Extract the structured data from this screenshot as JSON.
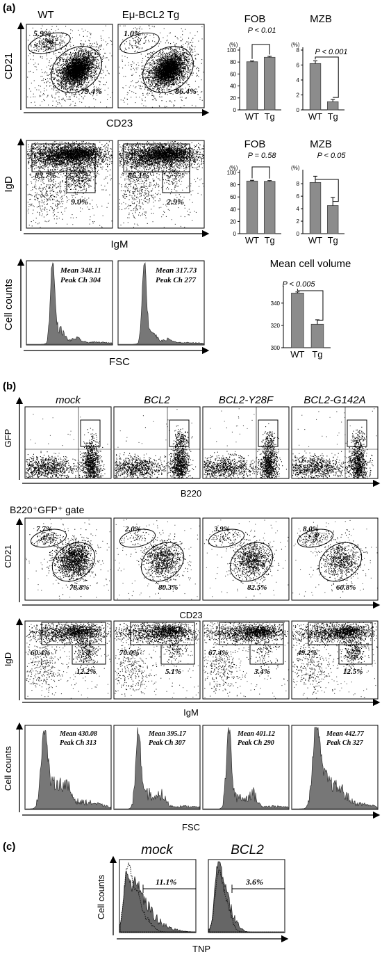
{
  "panel_a": {
    "label": "(a)",
    "col_wt": "WT",
    "col_tg": "Eμ-BCL2 Tg",
    "row1": {
      "ylabel": "CD21",
      "xlabel": "CD23",
      "wt_small": "5.9%",
      "wt_large": "79.4%",
      "tg_small": "1.0%",
      "tg_large": "86.4%"
    },
    "row2": {
      "ylabel": "IgD",
      "xlabel": "IgM",
      "wt_big": "83.7%",
      "wt_small": "9.0%",
      "tg_big": "86.1%",
      "tg_small": "2.9%"
    },
    "row3": {
      "ylabel": "Cell counts",
      "xlabel": "FSC",
      "wt_l1": "Mean  348.11",
      "wt_l2": "Peak Ch  304",
      "tg_l1": "Mean  317.73",
      "tg_l2": "Peak Ch  277"
    },
    "pct_unit": "(%)",
    "fob": "FOB",
    "mzb": "MZB",
    "p_fob1": "P < 0.01",
    "p_mzb1": "P < 0.001",
    "p_fob2": "P = 0.58",
    "p_mzb2": "P < 0.05",
    "mcv_title": "Mean cell volume",
    "p_mcv": "P < 0.005",
    "cat_wt": "WT",
    "cat_tg": "Tg"
  },
  "panel_b": {
    "label": "(b)",
    "cols": [
      "mock",
      "BCL2",
      "BCL2-Y28F",
      "BCL2-G142A"
    ],
    "gfp_ylabel": "GFP",
    "gfp_xlabel": "B220",
    "gate_label": "B220⁺GFP⁺ gate",
    "cd21_ylabel": "CD21",
    "cd23_xlabel": "CD23",
    "cd_small": [
      "7.7%",
      "2.0%",
      "3.9%",
      "8.0%"
    ],
    "cd_large": [
      "78.8%",
      "80.3%",
      "82.5%",
      "60.8%"
    ],
    "igd_ylabel": "IgD",
    "igm_xlabel": "IgM",
    "ig_big": [
      "60.4%",
      "70.0%",
      "67.4%",
      "49.2%"
    ],
    "ig_small": [
      "12.2%",
      "5.1%",
      "3.4%",
      "12.5%"
    ],
    "hist_ylabel": "Cell counts",
    "fsc_xlabel": "FSC",
    "mean": [
      "Mean  430.08",
      "Mean  395.17",
      "Mean  401.12",
      "Mean  442.77"
    ],
    "peak": [
      "Peak Ch 313",
      "Peak Ch 307",
      "Peak Ch 290",
      "Peak Ch 327"
    ]
  },
  "panel_c": {
    "label": "(c)",
    "col_mock": "mock",
    "col_bcl2": "BCL2",
    "ylabel": "Cell counts",
    "xlabel": "TNP",
    "mock_pct": "11.1%",
    "bcl2_pct": "3.6%"
  },
  "chart_data": [
    {
      "type": "bar",
      "title": "FOB",
      "ylabel": "(%)",
      "categories": [
        "WT",
        "Tg"
      ],
      "values": [
        80.5,
        88
      ],
      "ylim": [
        0,
        100
      ],
      "annotation": "P < 0.01"
    },
    {
      "type": "bar",
      "title": "MZB",
      "ylabel": "(%)",
      "categories": [
        "WT",
        "Tg"
      ],
      "values": [
        6.2,
        1.1
      ],
      "ylim": [
        0,
        8
      ],
      "annotation": "P < 0.001"
    },
    {
      "type": "bar",
      "title": "FOB",
      "ylabel": "(%)",
      "categories": [
        "WT",
        "Tg"
      ],
      "values": [
        86,
        85.5
      ],
      "ylim": [
        0,
        100
      ],
      "annotation": "P = 0.58"
    },
    {
      "type": "bar",
      "title": "MZB",
      "ylabel": "(%)",
      "categories": [
        "WT",
        "Tg"
      ],
      "values": [
        8.2,
        4.5
      ],
      "ylim": [
        0,
        10
      ],
      "annotation": "P < 0.05"
    },
    {
      "type": "bar",
      "title": "Mean cell volume",
      "categories": [
        "WT",
        "Tg"
      ],
      "values": [
        349,
        321
      ],
      "ylim": [
        300,
        350
      ],
      "annotation": "P < 0.005"
    }
  ]
}
